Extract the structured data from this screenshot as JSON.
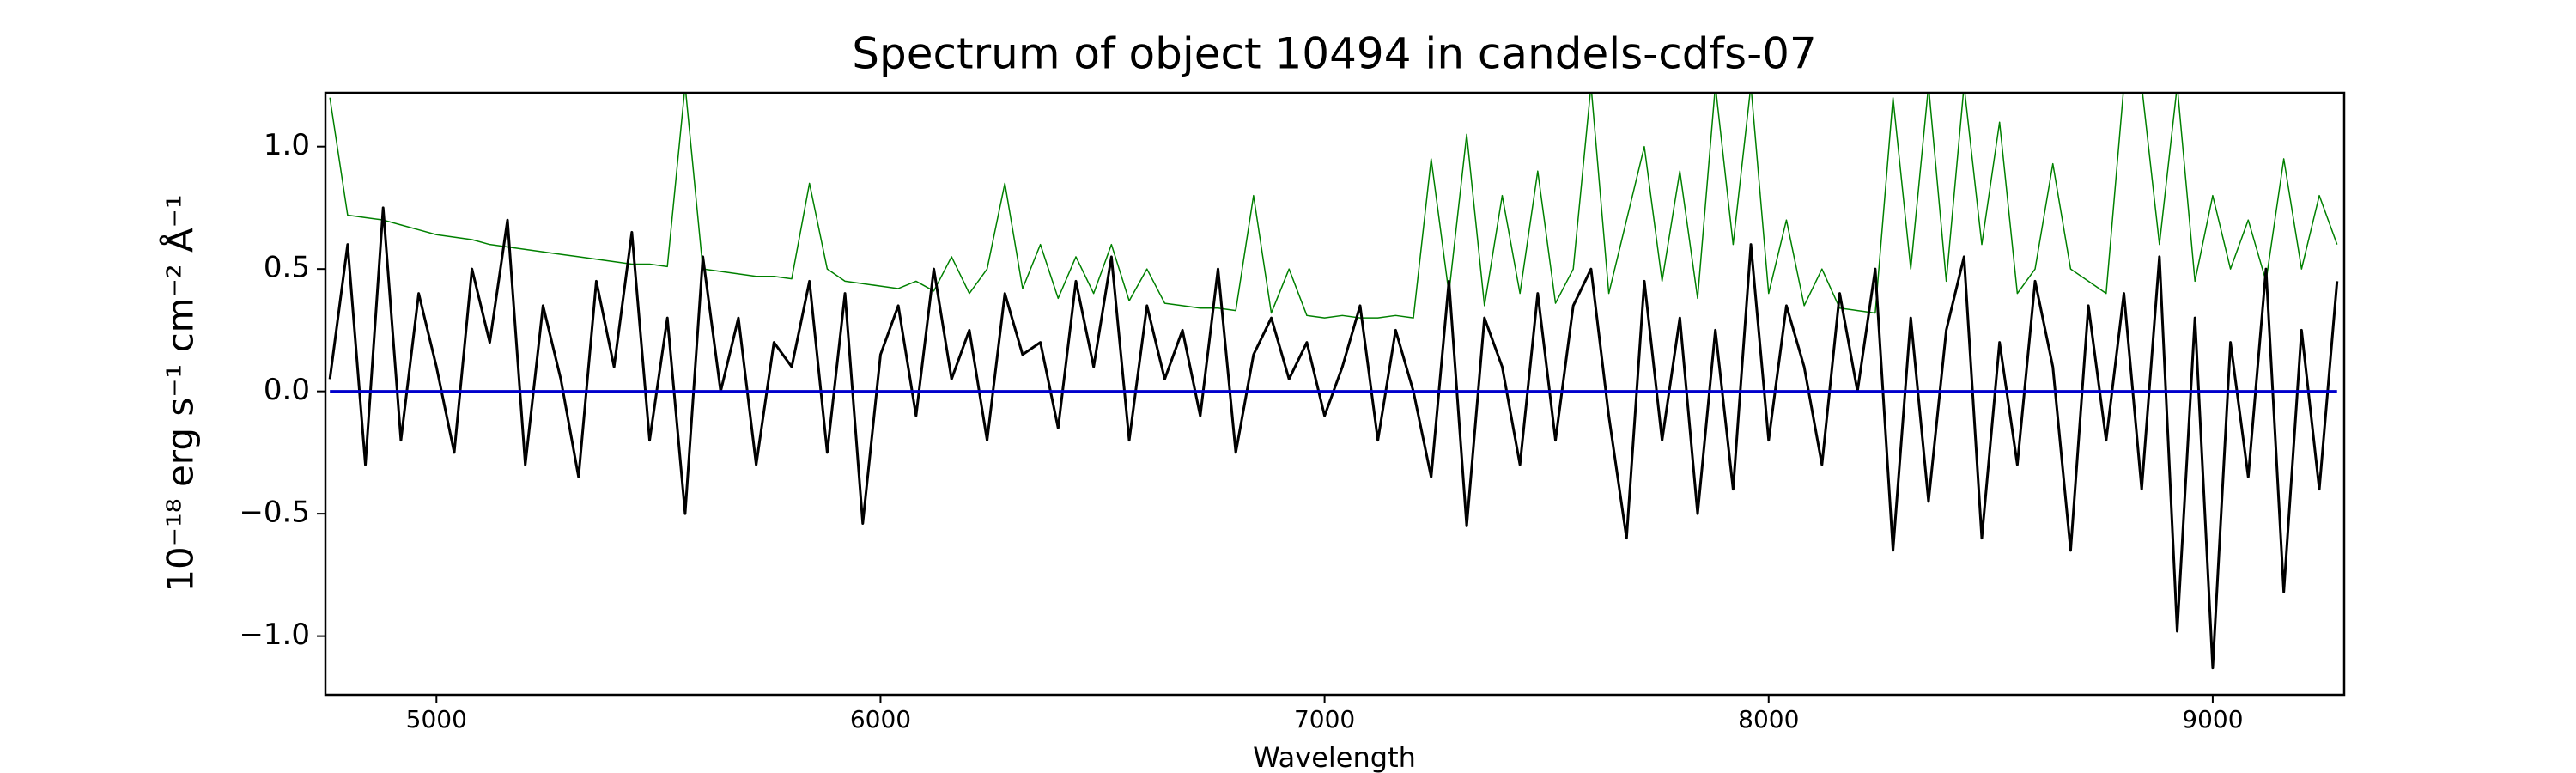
{
  "chart_data": {
    "type": "line",
    "title": "Spectrum of object 10494 in candels-cdfs-07",
    "xlabel": "Wavelength",
    "ylabel": "10⁻¹⁸ erg s⁻¹ cm⁻² Å⁻¹",
    "x": [
      4760,
      4800,
      4840,
      4880,
      4920,
      4960,
      5000,
      5040,
      5080,
      5120,
      5160,
      5200,
      5240,
      5280,
      5320,
      5360,
      5400,
      5440,
      5480,
      5520,
      5560,
      5600,
      5640,
      5680,
      5720,
      5760,
      5800,
      5840,
      5880,
      5920,
      5960,
      6000,
      6040,
      6080,
      6120,
      6160,
      6200,
      6240,
      6280,
      6320,
      6360,
      6400,
      6440,
      6480,
      6520,
      6560,
      6600,
      6640,
      6680,
      6720,
      6760,
      6800,
      6840,
      6880,
      6920,
      6960,
      7000,
      7040,
      7080,
      7120,
      7160,
      7200,
      7240,
      7280,
      7320,
      7360,
      7400,
      7440,
      7480,
      7520,
      7560,
      7600,
      7640,
      7680,
      7720,
      7760,
      7800,
      7840,
      7880,
      7920,
      7960,
      8000,
      8040,
      8080,
      8120,
      8160,
      8200,
      8240,
      8280,
      8320,
      8360,
      8400,
      8440,
      8480,
      8520,
      8560,
      8600,
      8640,
      8680,
      8720,
      8760,
      8800,
      8840,
      8880,
      8920,
      8960,
      9000,
      9040,
      9080,
      9120,
      9160,
      9200,
      9240,
      9280
    ],
    "series": [
      {
        "color": "#008000",
        "values": [
          1.2,
          0.72,
          0.71,
          0.7,
          0.68,
          0.66,
          0.64,
          0.63,
          0.62,
          0.6,
          0.59,
          0.58,
          0.57,
          0.56,
          0.55,
          0.54,
          0.53,
          0.52,
          0.52,
          0.51,
          1.25,
          0.5,
          0.49,
          0.48,
          0.47,
          0.47,
          0.46,
          0.85,
          0.5,
          0.45,
          0.44,
          0.43,
          0.42,
          0.45,
          0.41,
          0.55,
          0.4,
          0.5,
          0.85,
          0.42,
          0.6,
          0.38,
          0.55,
          0.4,
          0.6,
          0.37,
          0.5,
          0.36,
          0.35,
          0.34,
          0.34,
          0.33,
          0.8,
          0.32,
          0.5,
          0.31,
          0.3,
          0.31,
          0.3,
          0.3,
          0.31,
          0.3,
          0.95,
          0.4,
          1.05,
          0.35,
          0.8,
          0.4,
          0.9,
          0.36,
          0.5,
          1.25,
          0.4,
          0.7,
          1.0,
          0.45,
          0.9,
          0.38,
          1.25,
          0.6,
          1.25,
          0.4,
          0.7,
          0.35,
          0.5,
          0.34,
          0.33,
          0.32,
          1.2,
          0.5,
          1.25,
          0.45,
          1.25,
          0.6,
          1.1,
          0.4,
          0.5,
          0.93,
          0.5,
          0.45,
          0.4,
          1.25,
          1.25,
          0.6,
          1.25,
          0.45,
          0.8,
          0.5,
          0.7,
          0.45,
          0.95,
          0.5,
          0.8,
          0.6
        ]
      },
      {
        "color": "#000000",
        "values": [
          0.05,
          0.6,
          -0.3,
          0.75,
          -0.2,
          0.4,
          0.1,
          -0.25,
          0.5,
          0.2,
          0.7,
          -0.3,
          0.35,
          0.05,
          -0.35,
          0.45,
          0.1,
          0.65,
          -0.2,
          0.3,
          -0.5,
          0.55,
          0.0,
          0.3,
          -0.3,
          0.2,
          0.1,
          0.45,
          -0.25,
          0.4,
          -0.54,
          0.15,
          0.35,
          -0.1,
          0.5,
          0.05,
          0.25,
          -0.2,
          0.4,
          0.15,
          0.2,
          -0.15,
          0.45,
          0.1,
          0.55,
          -0.2,
          0.35,
          0.05,
          0.25,
          -0.1,
          0.5,
          -0.25,
          0.15,
          0.3,
          0.05,
          0.2,
          -0.1,
          0.1,
          0.35,
          -0.2,
          0.25,
          0.0,
          -0.35,
          0.45,
          -0.55,
          0.3,
          0.1,
          -0.3,
          0.4,
          -0.2,
          0.35,
          0.5,
          -0.1,
          -0.6,
          0.45,
          -0.2,
          0.3,
          -0.5,
          0.25,
          -0.4,
          0.6,
          -0.2,
          0.35,
          0.1,
          -0.3,
          0.4,
          0.0,
          0.5,
          -0.65,
          0.3,
          -0.45,
          0.25,
          0.55,
          -0.6,
          0.2,
          -0.3,
          0.45,
          0.1,
          -0.65,
          0.35,
          -0.2,
          0.4,
          -0.4,
          0.55,
          -0.98,
          0.3,
          -1.13,
          0.2,
          -0.35,
          0.5,
          -0.82,
          0.25,
          -0.4,
          0.45
        ]
      },
      {
        "color": "#0000cc",
        "values": [
          0,
          0,
          0,
          0,
          0,
          0,
          0,
          0,
          0,
          0,
          0,
          0,
          0,
          0,
          0,
          0,
          0,
          0,
          0,
          0,
          0,
          0,
          0,
          0,
          0,
          0,
          0,
          0,
          0,
          0,
          0,
          0,
          0,
          0,
          0,
          0,
          0,
          0,
          0,
          0,
          0,
          0,
          0,
          0,
          0,
          0,
          0,
          0,
          0,
          0,
          0,
          0,
          0,
          0,
          0,
          0,
          0,
          0,
          0,
          0,
          0,
          0,
          0,
          0,
          0,
          0,
          0,
          0,
          0,
          0,
          0,
          0,
          0,
          0,
          0,
          0,
          0,
          0,
          0,
          0,
          0,
          0,
          0,
          0,
          0,
          0,
          0,
          0,
          0,
          0,
          0,
          0,
          0,
          0,
          0,
          0,
          0,
          0,
          0,
          0,
          0,
          0,
          0,
          0,
          0,
          0,
          0,
          0,
          0,
          0,
          0,
          0,
          0,
          0
        ]
      }
    ],
    "xlim": [
      4750,
      9296
    ],
    "ylim": [
      -1.24,
      1.22
    ],
    "xticks": [
      5000,
      6000,
      7000,
      8000,
      9000
    ],
    "yticks": [
      {
        "value": -1.0,
        "label": "−1.0"
      },
      {
        "value": -0.5,
        "label": "−0.5"
      },
      {
        "value": 0.0,
        "label": "0.0"
      },
      {
        "value": 0.5,
        "label": "0.5"
      },
      {
        "value": 1.0,
        "label": "1.0"
      }
    ],
    "grid": false
  }
}
